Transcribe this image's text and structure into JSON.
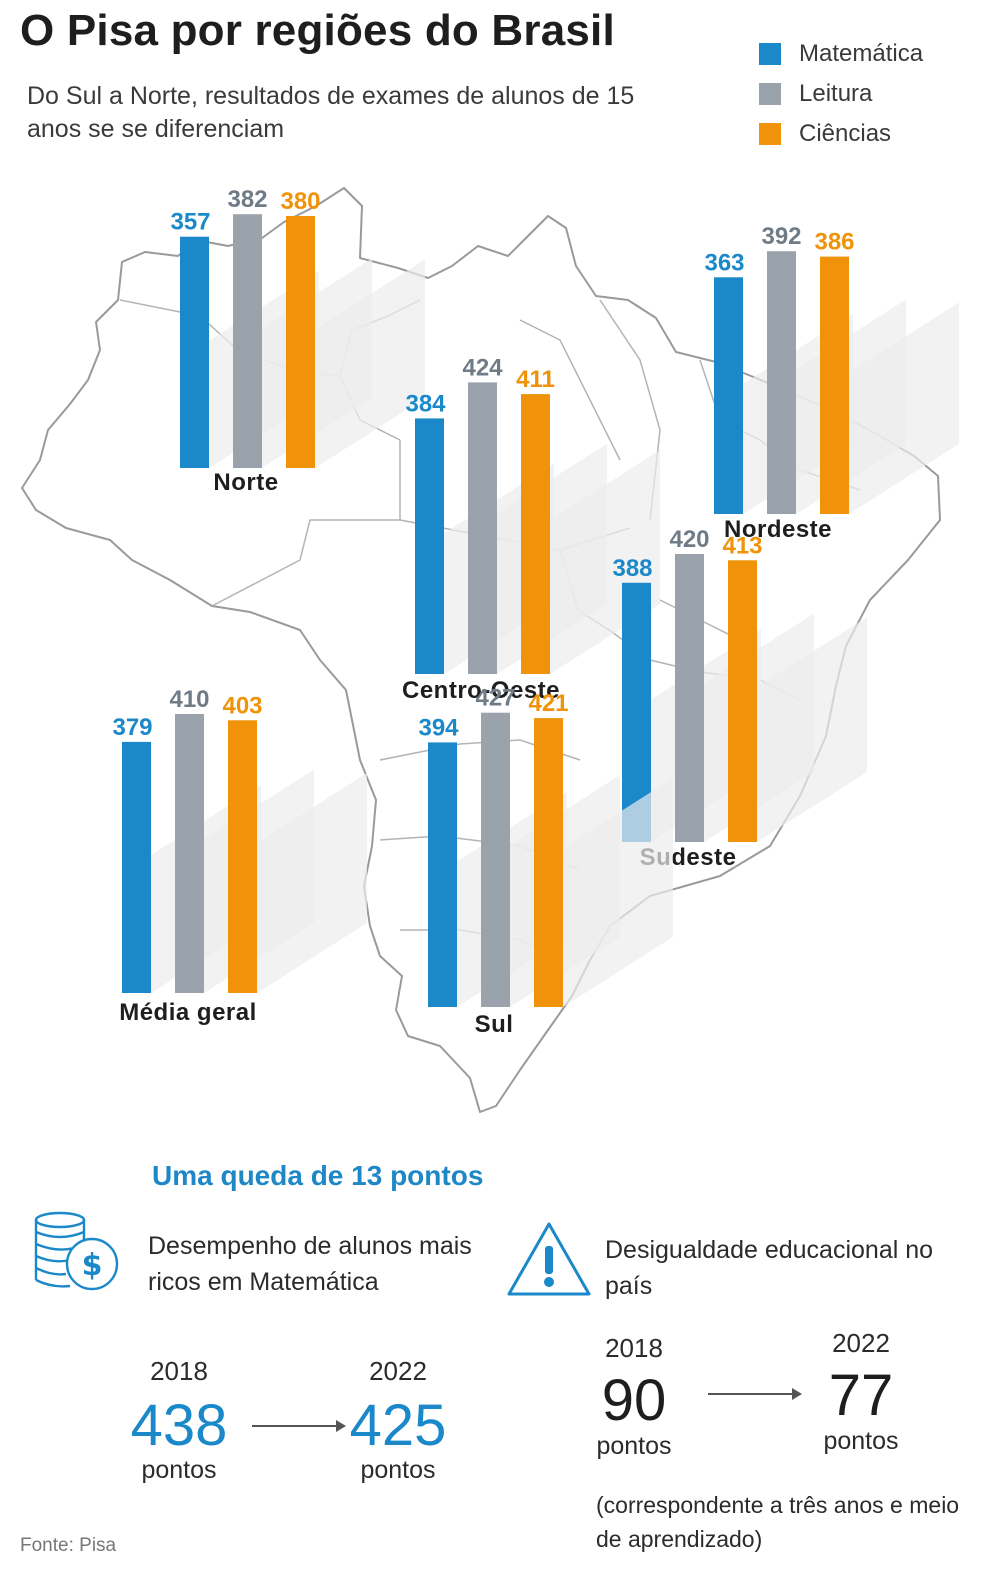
{
  "header": {
    "title": "O Pisa por regiões do Brasil",
    "subtitle": "Do Sul a Norte, resultados de exames de alunos de 15 anos se  se diferenciam"
  },
  "legend": [
    {
      "label": "Matemática",
      "color": "#1a88c9"
    },
    {
      "label": "Leitura",
      "color": "#9aa3ab"
    },
    {
      "label": "Ciências",
      "color": "#f0930a"
    }
  ],
  "chart_data": {
    "type": "bar",
    "categories": [
      "Norte",
      "Nordeste",
      "Centro-Oeste",
      "Sudeste",
      "Sul",
      "Média geral"
    ],
    "series": [
      {
        "name": "Matemática",
        "values": [
          357,
          363,
          384,
          388,
          394,
          379
        ]
      },
      {
        "name": "Leitura",
        "values": [
          382,
          392,
          424,
          420,
          427,
          410
        ]
      },
      {
        "name": "Ciências",
        "values": [
          380,
          386,
          411,
          413,
          421,
          403
        ]
      }
    ],
    "label_colors": [
      "#1a88c9",
      "#6f7b86",
      "#f0930a"
    ]
  },
  "bottom": {
    "headline": "Uma queda de 13 pontos",
    "left": {
      "label": "Desempenho de alunos mais ricos em Matemática",
      "from_year": "2018",
      "from_value": "438",
      "to_year": "2022",
      "to_value": "425",
      "unit": "pontos",
      "value_color": "#1a88c9",
      "icon": "coins-dollar-icon"
    },
    "right": {
      "label": "Desigualdade educacional no país",
      "from_year": "2018",
      "from_value": "90",
      "to_year": "2022",
      "to_value": "77",
      "unit": "pontos",
      "value_color": "#1e1e1e",
      "note": "(correspondente a três anos e meio de aprendizado)",
      "icon": "warning-icon"
    }
  },
  "source": "Fonte: Pisa"
}
